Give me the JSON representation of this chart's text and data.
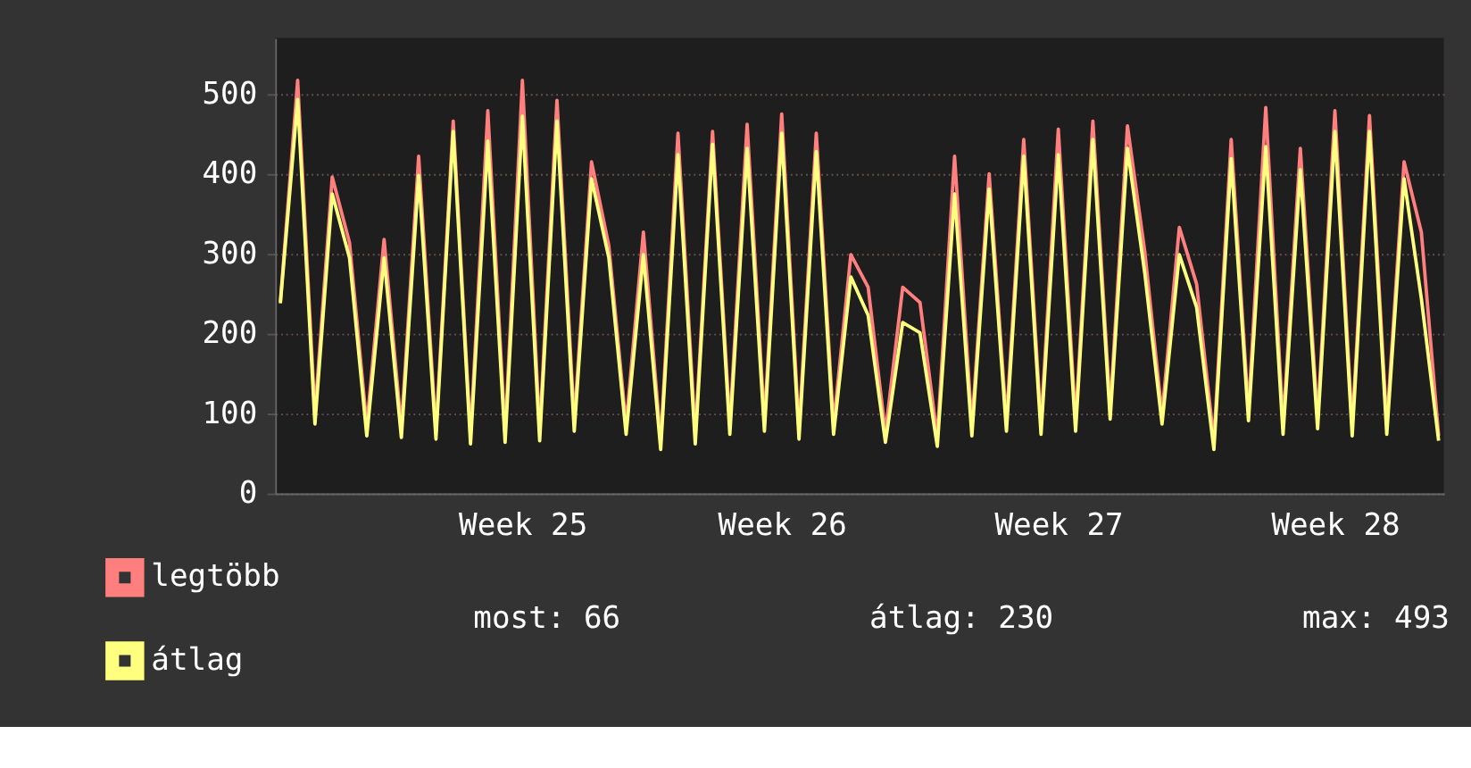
{
  "chart_data": {
    "type": "line",
    "categories": [
      null,
      null,
      null,
      null,
      null,
      null,
      null,
      null,
      null,
      null,
      null,
      null,
      null,
      null,
      "Week 25",
      null,
      null,
      null,
      null,
      null,
      null,
      null,
      null,
      null,
      null,
      null,
      null,
      null,
      null,
      "Week 26",
      null,
      null,
      null,
      null,
      null,
      null,
      null,
      null,
      null,
      null,
      null,
      null,
      null,
      null,
      null,
      "Week 27",
      null,
      null,
      null,
      null,
      null,
      null,
      null,
      null,
      null,
      null,
      null,
      null,
      null,
      null,
      null,
      "Week 28",
      null,
      null,
      null,
      null,
      null,
      null
    ],
    "series": [
      {
        "name": "legtöbb",
        "color": "#ff7f7f",
        "values": [
          240,
          517,
          100,
          396,
          314,
          85,
          318,
          82,
          422,
          78,
          466,
          72,
          479,
          75,
          517,
          78,
          492,
          90,
          415,
          310,
          86,
          327,
          65,
          451,
          74,
          453,
          86,
          462,
          90,
          475,
          80,
          451,
          86,
          299,
          258,
          76,
          258,
          239,
          70,
          422,
          84,
          400,
          90,
          443,
          86,
          456,
          90,
          466,
          105,
          460,
          303,
          99,
          333,
          262,
          66,
          443,
          103,
          483,
          86,
          432,
          93,
          479,
          84,
          473,
          86,
          415,
          327,
          72
        ]
      },
      {
        "name": "átlag",
        "color": "#ffff7f",
        "values": [
          238,
          493,
          87,
          375,
          295,
          72,
          295,
          70,
          398,
          68,
          453,
          62,
          441,
          64,
          472,
          66,
          466,
          78,
          394,
          295,
          74,
          299,
          55,
          424,
          62,
          437,
          74,
          432,
          78,
          451,
          68,
          428,
          74,
          271,
          223,
          64,
          214,
          201,
          59,
          375,
          72,
          381,
          78,
          422,
          74,
          424,
          78,
          443,
          93,
          432,
          276,
          87,
          299,
          233,
          55,
          419,
          91,
          434,
          74,
          405,
          81,
          453,
          72,
          453,
          74,
          394,
          244,
          66
        ]
      }
    ],
    "ylim": [
      0,
      570
    ],
    "yticks": [
      0,
      100,
      200,
      300,
      400,
      500
    ],
    "grid": "y",
    "legend": "bottom left",
    "line_style": "solid",
    "marker": "none",
    "annotations": [
      "most: 66",
      "átlag: 230",
      "max: 493"
    ]
  }
}
